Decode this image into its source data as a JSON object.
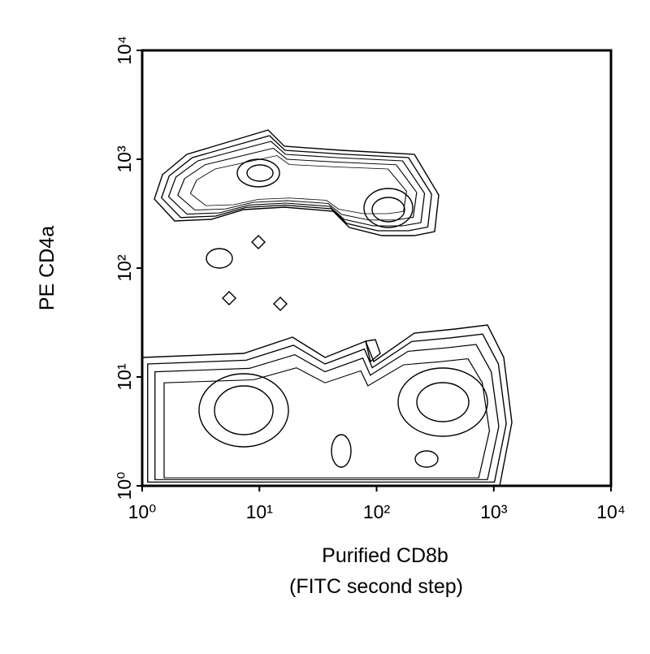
{
  "chart_data": {
    "type": "contour",
    "xlabel": [
      "Purified CD8b",
      "(FITC second step)"
    ],
    "ylabel": "PE CD4a",
    "xscale": "log",
    "yscale": "log",
    "xlim": [
      1,
      10000
    ],
    "ylim": [
      1,
      10000
    ],
    "xticks": [
      {
        "value": 1,
        "label": "10⁰"
      },
      {
        "value": 10,
        "label": "10¹"
      },
      {
        "value": 100,
        "label": "10²"
      },
      {
        "value": 1000,
        "label": "10³"
      },
      {
        "value": 10000,
        "label": "10⁴"
      }
    ],
    "yticks": [
      {
        "value": 1,
        "label": "10⁰"
      },
      {
        "value": 10,
        "label": "10¹"
      },
      {
        "value": 100,
        "label": "10²"
      },
      {
        "value": 1000,
        "label": "10³"
      },
      {
        "value": 10000,
        "label": "10⁴"
      }
    ],
    "color": "#000000"
  }
}
